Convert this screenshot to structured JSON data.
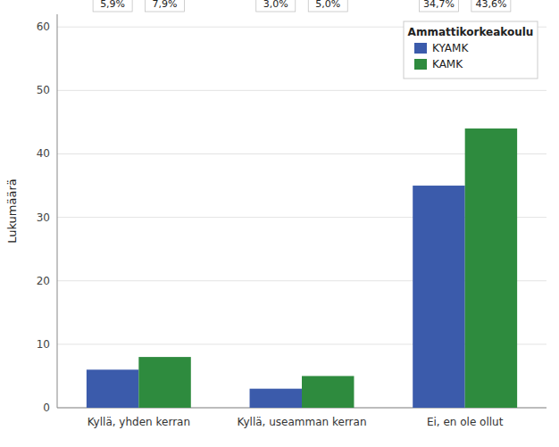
{
  "chart_data": {
    "type": "bar",
    "categories": [
      "Kyllä, yhden kerran",
      "Kyllä, useamman kerran",
      "Ei, en ole ollut"
    ],
    "series": [
      {
        "name": "KYAMK",
        "color": "#3b5bab",
        "values": [
          6,
          3,
          35
        ],
        "percent_labels": [
          "5,9%",
          "3,0%",
          "34,7%"
        ]
      },
      {
        "name": "KAMK",
        "color": "#2e8b3e",
        "values": [
          8,
          5,
          44
        ],
        "percent_labels": [
          "7,9%",
          "5,0%",
          "43,6%"
        ]
      }
    ],
    "ylabel": "Lukumäärä",
    "legend_title": "Ammattikorkeakoulu",
    "legend": "upper right",
    "ylim": [
      0,
      62
    ],
    "yticks": [
      0,
      10,
      20,
      30,
      40,
      50,
      60
    ],
    "grid": true,
    "data_labels": true
  }
}
